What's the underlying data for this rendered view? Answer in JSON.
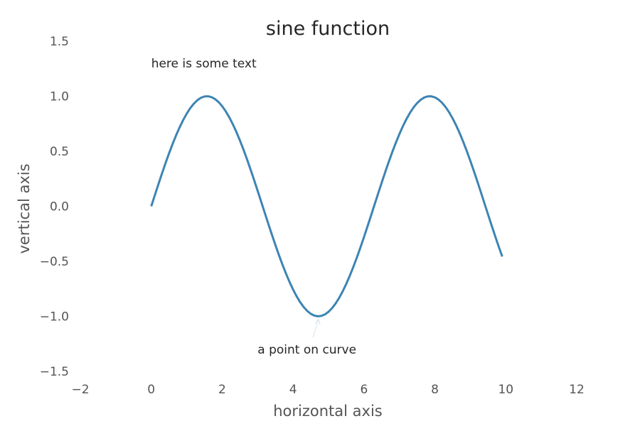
{
  "chart_data": {
    "type": "line",
    "title": "sine function",
    "xlabel": "horizontal axis",
    "ylabel": "vertical axis",
    "xlim": [
      -2,
      12
    ],
    "ylim": [
      -1.5,
      1.5
    ],
    "xticks": [
      "−2",
      "0",
      "2",
      "4",
      "6",
      "8",
      "10",
      "12"
    ],
    "yticks": [
      "1.5",
      "1.0",
      "0.5",
      "0.0",
      "−0.5",
      "−1.0",
      "−1.5"
    ],
    "grid": false,
    "colors": {
      "line": "#3d84b3",
      "arrow": "#d6e4ee"
    },
    "series": [
      {
        "function": "sin(x)",
        "x_start": 0,
        "x_end": 9.9,
        "x_step": 0.1
      }
    ],
    "annotations": [
      {
        "text": "here is some text",
        "x": 0,
        "y": 1.3,
        "arrow": false
      },
      {
        "text": "a point on curve",
        "x": 3,
        "y": -1.3,
        "arrow": true,
        "target_x": 4.7,
        "target_y": -1.0
      }
    ]
  }
}
